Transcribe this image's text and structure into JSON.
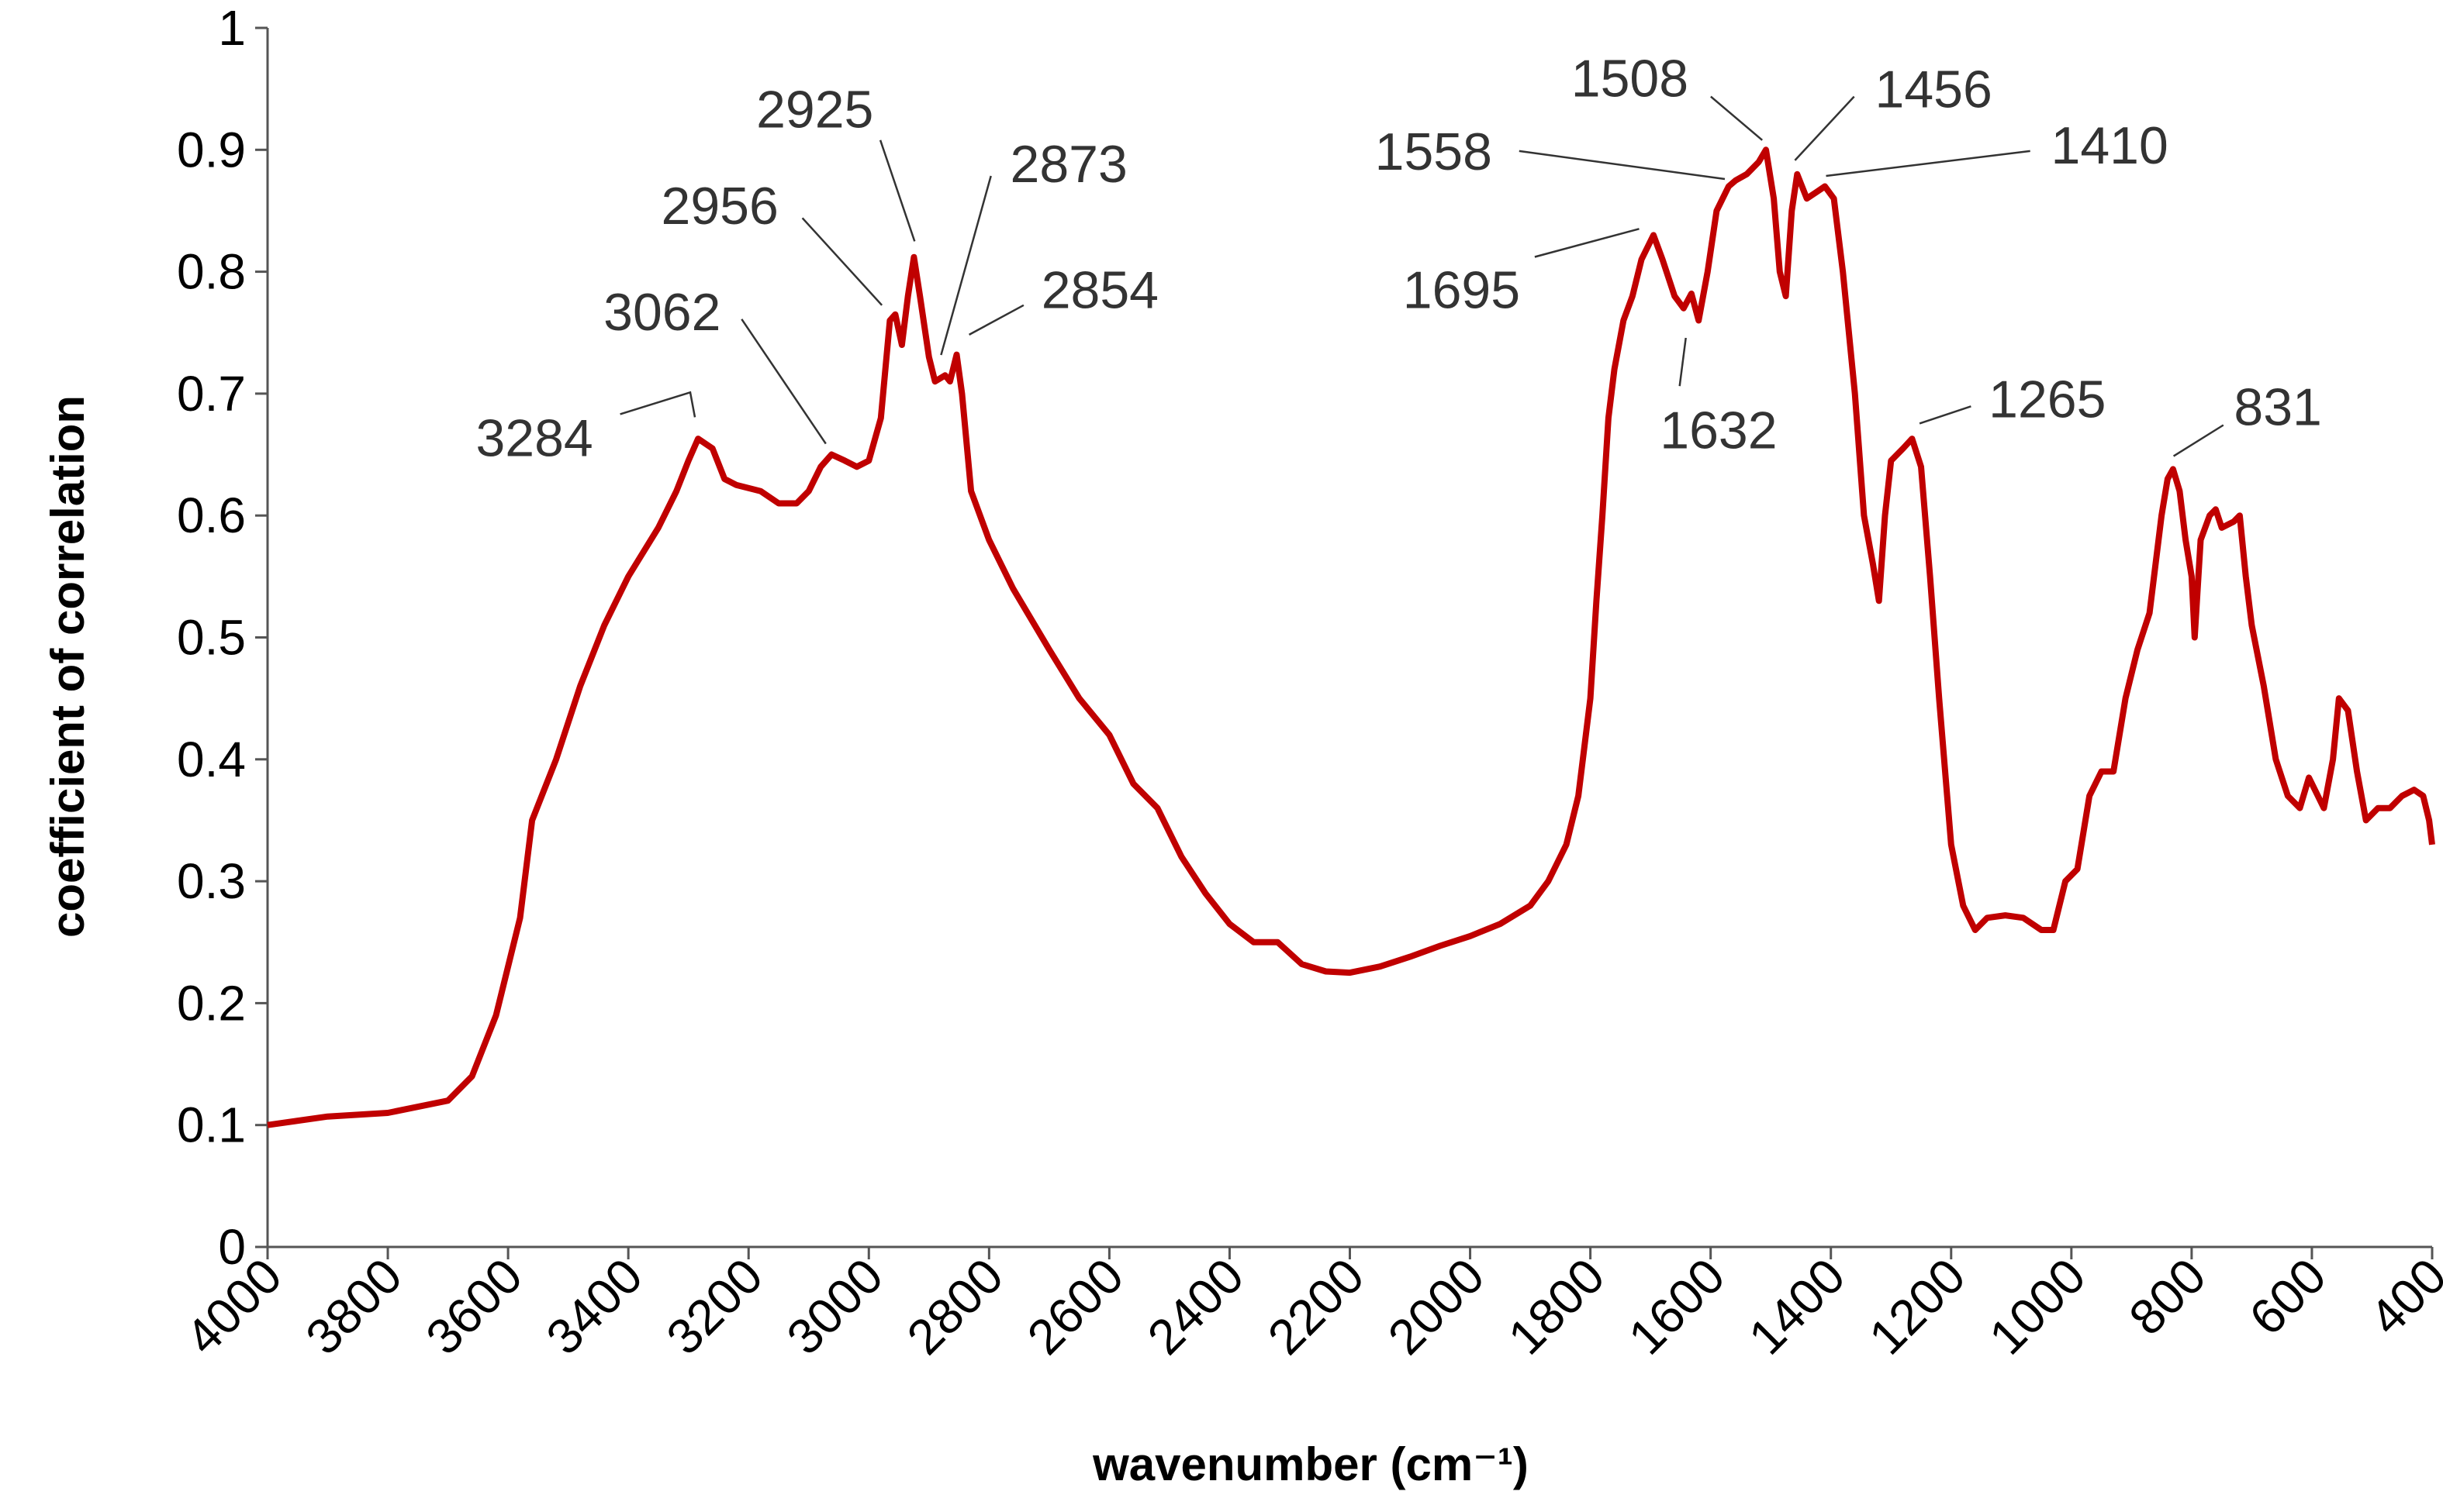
{
  "chart_data": {
    "type": "line",
    "xlabel": "wavenumber (cm⁻¹)",
    "ylabel": "coefficient of correlation",
    "xlim": [
      4000,
      400
    ],
    "ylim": [
      0,
      1
    ],
    "xticks": [
      4000,
      3800,
      3600,
      3400,
      3200,
      3000,
      2800,
      2600,
      2400,
      2200,
      2000,
      1800,
      1600,
      1400,
      1200,
      1000,
      800,
      600,
      400
    ],
    "yticks": [
      0,
      0.1,
      0.2,
      0.3,
      0.4,
      0.5,
      0.6,
      0.7,
      0.8,
      0.9,
      1
    ],
    "annotations": [
      "3284",
      "3062",
      "2956",
      "2925",
      "2873",
      "2854",
      "1695",
      "1632",
      "1558",
      "1508",
      "1456",
      "1410",
      "1265",
      "831"
    ],
    "series": [
      {
        "color": "#c00000",
        "x": [
          4000,
          3900,
          3800,
          3700,
          3660,
          3620,
          3580,
          3560,
          3520,
          3480,
          3440,
          3400,
          3350,
          3320,
          3300,
          3284,
          3260,
          3240,
          3220,
          3180,
          3150,
          3120,
          3100,
          3080,
          3062,
          3040,
          3020,
          3000,
          2980,
          2965,
          2956,
          2945,
          2935,
          2925,
          2915,
          2900,
          2890,
          2873,
          2865,
          2854,
          2845,
          2830,
          2800,
          2760,
          2700,
          2650,
          2600,
          2560,
          2520,
          2480,
          2440,
          2400,
          2360,
          2320,
          2280,
          2240,
          2200,
          2150,
          2100,
          2050,
          2000,
          1950,
          1900,
          1870,
          1840,
          1820,
          1800,
          1790,
          1780,
          1770,
          1760,
          1745,
          1730,
          1715,
          1695,
          1680,
          1660,
          1645,
          1632,
          1620,
          1605,
          1590,
          1570,
          1558,
          1540,
          1520,
          1508,
          1495,
          1485,
          1475,
          1465,
          1456,
          1440,
          1425,
          1410,
          1395,
          1380,
          1360,
          1345,
          1330,
          1320,
          1310,
          1300,
          1280,
          1265,
          1250,
          1235,
          1220,
          1200,
          1180,
          1160,
          1140,
          1110,
          1080,
          1050,
          1030,
          1010,
          990,
          970,
          950,
          930,
          910,
          890,
          870,
          850,
          840,
          831,
          820,
          810,
          800,
          795,
          785,
          770,
          760,
          750,
          730,
          720,
          710,
          700,
          680,
          660,
          640,
          620,
          605,
          590,
          580,
          565,
          555,
          540,
          525,
          510,
          490,
          470,
          450,
          430,
          415,
          405,
          400
        ],
        "values": [
          0.1,
          0.107,
          0.11,
          0.12,
          0.14,
          0.19,
          0.27,
          0.35,
          0.4,
          0.46,
          0.51,
          0.55,
          0.59,
          0.62,
          0.645,
          0.663,
          0.655,
          0.63,
          0.625,
          0.62,
          0.61,
          0.61,
          0.62,
          0.64,
          0.65,
          0.645,
          0.64,
          0.645,
          0.68,
          0.76,
          0.765,
          0.74,
          0.78,
          0.812,
          0.78,
          0.73,
          0.71,
          0.715,
          0.71,
          0.732,
          0.7,
          0.62,
          0.58,
          0.54,
          0.49,
          0.45,
          0.42,
          0.38,
          0.36,
          0.32,
          0.29,
          0.265,
          0.25,
          0.25,
          0.232,
          0.226,
          0.225,
          0.23,
          0.238,
          0.247,
          0.255,
          0.265,
          0.28,
          0.3,
          0.33,
          0.37,
          0.45,
          0.53,
          0.6,
          0.68,
          0.72,
          0.76,
          0.78,
          0.81,
          0.83,
          0.81,
          0.78,
          0.77,
          0.782,
          0.76,
          0.8,
          0.85,
          0.87,
          0.875,
          0.88,
          0.89,
          0.9,
          0.86,
          0.8,
          0.78,
          0.85,
          0.88,
          0.86,
          0.865,
          0.87,
          0.86,
          0.8,
          0.7,
          0.6,
          0.56,
          0.53,
          0.6,
          0.645,
          0.655,
          0.663,
          0.64,
          0.55,
          0.45,
          0.33,
          0.28,
          0.26,
          0.27,
          0.272,
          0.27,
          0.26,
          0.26,
          0.3,
          0.31,
          0.37,
          0.39,
          0.39,
          0.45,
          0.49,
          0.52,
          0.6,
          0.63,
          0.638,
          0.62,
          0.58,
          0.55,
          0.5,
          0.58,
          0.6,
          0.605,
          0.59,
          0.595,
          0.6,
          0.55,
          0.51,
          0.46,
          0.4,
          0.37,
          0.36,
          0.385,
          0.37,
          0.36,
          0.4,
          0.45,
          0.44,
          0.39,
          0.35,
          0.36,
          0.36,
          0.37,
          0.375,
          0.37,
          0.35,
          0.33
        ]
      }
    ]
  }
}
